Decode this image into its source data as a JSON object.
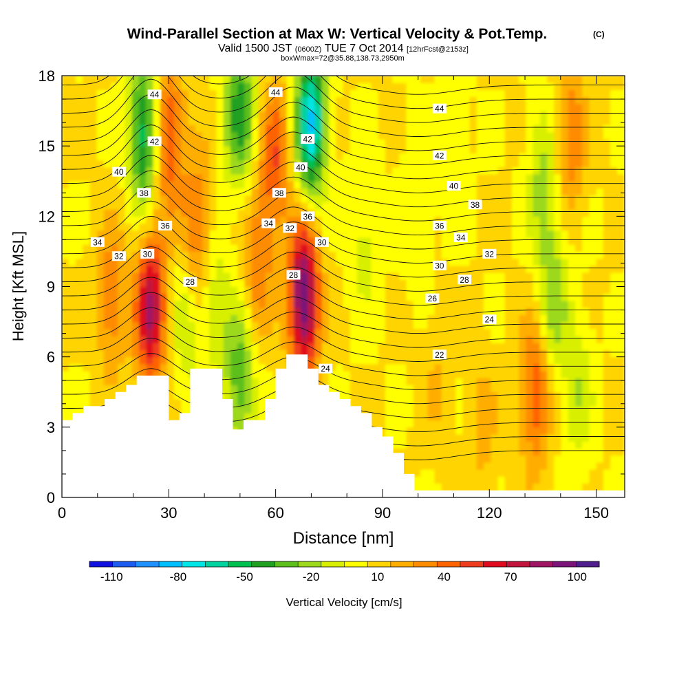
{
  "chart_data": {
    "type": "heatmap",
    "title": "Wind-Parallel Section at Max W: Vertical Velocity & Pot.Temp.",
    "title_mark": "(C)",
    "subtitle": {
      "part1": "Valid 1500 JST",
      "part2": "(0600Z)",
      "part3": "TUE 7 Oct 2014",
      "part4": "[12hrFcst@2153z]"
    },
    "subtitle2": "boxWmax=72@35.88,138.73,2950m",
    "xlabel": "Distance [nm]",
    "ylabel": "Height [Kft MSL]",
    "xlim": [
      0,
      158
    ],
    "ylim": [
      0,
      18
    ],
    "xticks": [
      0,
      30,
      60,
      90,
      120,
      150
    ],
    "yticks": [
      0,
      3,
      6,
      9,
      12,
      15,
      18
    ],
    "grid": false,
    "colorbar": {
      "label": "Vertical Velocity [cm/s]",
      "placement": "bottom",
      "tick_labels": [
        "-110",
        "-80",
        "-50",
        "-20",
        "10",
        "40",
        "70",
        "100"
      ],
      "tick_values": [
        -110,
        -80,
        -50,
        -20,
        10,
        40,
        70,
        100
      ],
      "range": [
        -120,
        110
      ],
      "colors": [
        "#1010e0",
        "#1e5cf0",
        "#1e90ff",
        "#00bfff",
        "#00e5e5",
        "#00d2a0",
        "#00c050",
        "#20a020",
        "#5cbf1c",
        "#9cd81c",
        "#d8f000",
        "#ffff00",
        "#ffd400",
        "#ffae00",
        "#ff8c00",
        "#ff6400",
        "#f03c1e",
        "#e00a1e",
        "#c0143c",
        "#a01464",
        "#7a1478",
        "#501e8c"
      ]
    },
    "velocity_features": [
      {
        "x": 14,
        "z": 8.5,
        "w": 30
      },
      {
        "x": 25,
        "z": 8.0,
        "w": 75
      },
      {
        "x": 30,
        "z": 15.5,
        "w": 45
      },
      {
        "x": 38,
        "z": 11.5,
        "w": 35
      },
      {
        "x": 68,
        "z": 8.5,
        "w": 95
      },
      {
        "x": 60,
        "z": 14.5,
        "w": 40
      },
      {
        "x": 55,
        "z": 10.0,
        "w": 30
      },
      {
        "x": 23,
        "z": 15.5,
        "w": -60
      },
      {
        "x": 50,
        "z": 16.5,
        "w": -50
      },
      {
        "x": 70,
        "z": 16.0,
        "w": -85
      },
      {
        "x": 50,
        "z": 5.0,
        "w": -40
      },
      {
        "x": 35,
        "z": 7.5,
        "w": -20
      },
      {
        "x": 43,
        "z": 8.5,
        "w": -20
      },
      {
        "x": 85,
        "z": 11.0,
        "w": -15
      },
      {
        "x": 100,
        "z": 12.5,
        "w": -12
      },
      {
        "x": 110,
        "z": 15.0,
        "w": -10
      },
      {
        "x": 135,
        "z": 13.5,
        "w": -25
      },
      {
        "x": 138,
        "z": 8.5,
        "w": -30
      },
      {
        "x": 145,
        "z": 4.5,
        "w": -20
      },
      {
        "x": 143,
        "z": 15.5,
        "w": 30
      },
      {
        "x": 133,
        "z": 4.5,
        "w": 40
      },
      {
        "x": 118,
        "z": 3.0,
        "w": 15
      },
      {
        "x": 105,
        "z": 5.0,
        "w": 10
      }
    ],
    "terrain": {
      "x": [
        0,
        3,
        6,
        9,
        12,
        15,
        18,
        21,
        24,
        27,
        30,
        33,
        36,
        39,
        42,
        45,
        48,
        51,
        54,
        57,
        60,
        63,
        66,
        69,
        72,
        75,
        78,
        81,
        84,
        87,
        90,
        93,
        96,
        99,
        102
      ],
      "z": [
        3.3,
        3.6,
        3.9,
        3.9,
        4.2,
        4.5,
        4.8,
        5.2,
        5.2,
        5.2,
        3.3,
        3.6,
        5.5,
        5.5,
        5.5,
        4.2,
        2.9,
        3.3,
        3.3,
        4.2,
        5.5,
        6.1,
        6.1,
        5.5,
        4.8,
        4.5,
        4.2,
        3.9,
        3.6,
        3.0,
        2.6,
        1.9,
        1.0,
        0.3,
        0.3
      ]
    },
    "isentropes": [
      {
        "theta": 22,
        "label": "22",
        "label_at": [
          106,
          6.1
        ]
      },
      {
        "theta": 24,
        "label": "24",
        "label_at": [
          120,
          7.6
        ]
      },
      {
        "theta": 24,
        "label": "24",
        "label_at": [
          74,
          5.5
        ]
      },
      {
        "theta": 26,
        "label": "26",
        "label_at": [
          104,
          8.5
        ]
      },
      {
        "theta": 28,
        "label": "28",
        "label_at": [
          36,
          9.2
        ]
      },
      {
        "theta": 28,
        "label": "28",
        "label_at": [
          65,
          9.5
        ]
      },
      {
        "theta": 28,
        "label": "28",
        "label_at": [
          113,
          9.3
        ]
      },
      {
        "theta": 30,
        "label": "30",
        "label_at": [
          24,
          10.4
        ]
      },
      {
        "theta": 30,
        "label": "30",
        "label_at": [
          73,
          10.9
        ]
      },
      {
        "theta": 30,
        "label": "30",
        "label_at": [
          106,
          9.9
        ]
      },
      {
        "theta": 32,
        "label": "32",
        "label_at": [
          16,
          10.3
        ]
      },
      {
        "theta": 32,
        "label": "32",
        "label_at": [
          64,
          11.5
        ]
      },
      {
        "theta": 32,
        "label": "32",
        "label_at": [
          120,
          10.4
        ]
      },
      {
        "theta": 34,
        "label": "34",
        "label_at": [
          10,
          10.9
        ]
      },
      {
        "theta": 34,
        "label": "34",
        "label_at": [
          58,
          11.7
        ]
      },
      {
        "theta": 34,
        "label": "34",
        "label_at": [
          112,
          11.1
        ]
      },
      {
        "theta": 36,
        "label": "36",
        "label_at": [
          29,
          11.6
        ]
      },
      {
        "theta": 36,
        "label": "36",
        "label_at": [
          69,
          12.0
        ]
      },
      {
        "theta": 36,
        "label": "36",
        "label_at": [
          106,
          11.6
        ]
      },
      {
        "theta": 38,
        "label": "38",
        "label_at": [
          23,
          13.0
        ]
      },
      {
        "theta": 38,
        "label": "38",
        "label_at": [
          61,
          13.0
        ]
      },
      {
        "theta": 38,
        "label": "38",
        "label_at": [
          116,
          12.5
        ]
      },
      {
        "theta": 40,
        "label": "40",
        "label_at": [
          16,
          13.9
        ]
      },
      {
        "theta": 40,
        "label": "40",
        "label_at": [
          67,
          14.1
        ]
      },
      {
        "theta": 40,
        "label": "40",
        "label_at": [
          110,
          13.3
        ]
      },
      {
        "theta": 42,
        "label": "42",
        "label_at": [
          26,
          15.2
        ]
      },
      {
        "theta": 42,
        "label": "42",
        "label_at": [
          69,
          15.3
        ]
      },
      {
        "theta": 42,
        "label": "42",
        "label_at": [
          106,
          14.6
        ]
      },
      {
        "theta": 44,
        "label": "44",
        "label_at": [
          26,
          17.2
        ]
      },
      {
        "theta": 44,
        "label": "44",
        "label_at": [
          60,
          17.3
        ]
      },
      {
        "theta": 44,
        "label": "44",
        "label_at": [
          106,
          16.6
        ]
      }
    ]
  }
}
